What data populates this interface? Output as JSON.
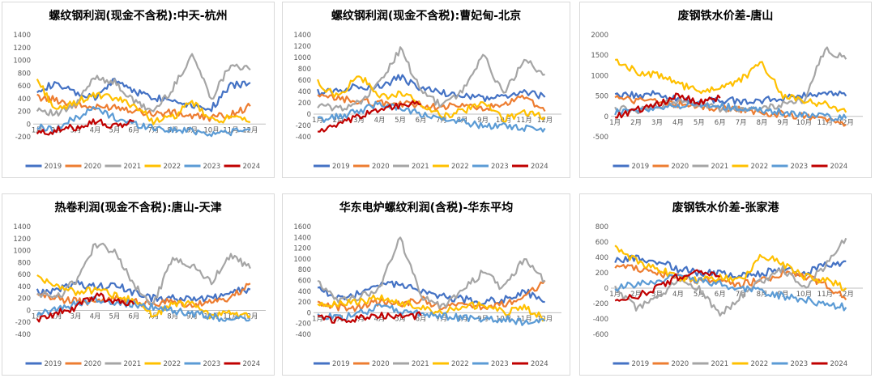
{
  "colors": {
    "2019": "#4472c4",
    "2020": "#ed7d31",
    "2021": "#a5a5a5",
    "2022": "#ffc000",
    "2023": "#5b9bd5",
    "2024": "#c00000"
  },
  "chart_data": [
    {
      "type": "line",
      "title": "螺纹钢利润(现金不含税):中天-杭州",
      "ylim": [
        -200,
        1400
      ],
      "yticks": [
        "1400",
        "1200",
        "1000",
        "800",
        "600",
        "400",
        "200",
        "0",
        "-200"
      ],
      "x": [
        "1月",
        "2月",
        "3月",
        "4月",
        "5月",
        "6月",
        "7月",
        "8月",
        "9月",
        "10月",
        "11月",
        "12月"
      ],
      "legend_position": "bottom",
      "series": [
        {
          "name": "2019",
          "values": [
            550,
            620,
            480,
            400,
            700,
            520,
            420,
            380,
            300,
            250,
            600,
            650
          ]
        },
        {
          "name": "2020",
          "values": [
            420,
            380,
            300,
            250,
            280,
            220,
            160,
            180,
            120,
            100,
            150,
            280
          ]
        },
        {
          "name": "2021",
          "values": [
            250,
            150,
            300,
            750,
            650,
            350,
            200,
            550,
            1100,
            400,
            950,
            850
          ]
        },
        {
          "name": "2022",
          "values": [
            700,
            200,
            350,
            450,
            400,
            300,
            50,
            100,
            350,
            50,
            100,
            30
          ]
        },
        {
          "name": "2023",
          "values": [
            -50,
            -80,
            100,
            250,
            100,
            0,
            -50,
            -100,
            -100,
            -150,
            -120,
            -100
          ]
        },
        {
          "name": "2024",
          "values": [
            -150,
            -100,
            -50,
            50,
            -50,
            50,
            null,
            null,
            null,
            null,
            null,
            null
          ]
        }
      ]
    },
    {
      "type": "line",
      "title": "螺纹钢利润(现金不含税):曹妃甸-北京",
      "ylim": [
        -400,
        1400
      ],
      "yticks": [
        "1400",
        "1200",
        "1000",
        "800",
        "600",
        "400",
        "200",
        "0",
        "-200",
        "-400"
      ],
      "x": [
        "1月",
        "2月",
        "3月",
        "4月",
        "5月",
        "6月",
        "7月",
        "8月",
        "9月",
        "10月",
        "11月",
        "12月"
      ],
      "legend_position": "bottom",
      "series": [
        {
          "name": "2019",
          "values": [
            380,
            420,
            500,
            480,
            650,
            450,
            380,
            320,
            280,
            300,
            400,
            300
          ]
        },
        {
          "name": "2020",
          "values": [
            300,
            280,
            220,
            200,
            180,
            160,
            120,
            150,
            100,
            150,
            300,
            50
          ]
        },
        {
          "name": "2021",
          "values": [
            150,
            100,
            200,
            550,
            1150,
            400,
            150,
            400,
            1050,
            350,
            950,
            700
          ]
        },
        {
          "name": "2022",
          "values": [
            550,
            300,
            700,
            300,
            350,
            200,
            -50,
            50,
            200,
            -100,
            50,
            -50
          ]
        },
        {
          "name": "2023",
          "values": [
            -100,
            -50,
            50,
            200,
            100,
            0,
            -100,
            -150,
            -200,
            -200,
            -250,
            -250
          ]
        },
        {
          "name": "2024",
          "values": [
            -300,
            -200,
            -50,
            100,
            150,
            180,
            null,
            null,
            null,
            null,
            null,
            null
          ]
        }
      ]
    },
    {
      "type": "line",
      "title": "废钢铁水价差-唐山",
      "ylim": [
        -500,
        2000
      ],
      "yticks": [
        "2000",
        "1500",
        "1000",
        "500",
        "0",
        "-500"
      ],
      "x": [
        "1月",
        "2月",
        "3月",
        "4月",
        "5月",
        "6月",
        "7月",
        "8月",
        "9月",
        "10月",
        "11月",
        "12月"
      ],
      "legend_position": "bottom",
      "series": [
        {
          "name": "2019",
          "values": [
            500,
            520,
            550,
            400,
            350,
            400,
            380,
            400,
            450,
            500,
            600,
            500
          ]
        },
        {
          "name": "2020",
          "values": [
            450,
            400,
            350,
            300,
            250,
            200,
            150,
            100,
            50,
            0,
            -100,
            -200
          ]
        },
        {
          "name": "2021",
          "values": [
            200,
            150,
            250,
            400,
            300,
            200,
            150,
            200,
            300,
            400,
            1650,
            1400
          ]
        },
        {
          "name": "2022",
          "values": [
            1400,
            1100,
            1000,
            800,
            600,
            700,
            900,
            1300,
            500,
            400,
            300,
            100
          ]
        },
        {
          "name": "2023",
          "values": [
            100,
            150,
            200,
            250,
            300,
            250,
            200,
            150,
            100,
            50,
            0,
            -50
          ]
        },
        {
          "name": "2024",
          "values": [
            0,
            150,
            300,
            500,
            350,
            450,
            null,
            null,
            null,
            null,
            null,
            null
          ]
        }
      ]
    },
    {
      "type": "line",
      "title": "热卷利润(现金不含税):唐山-天津",
      "ylim": [
        -400,
        1400
      ],
      "yticks": [
        "1400",
        "1200",
        "1000",
        "800",
        "600",
        "400",
        "200",
        "0",
        "-200",
        "-400"
      ],
      "x": [
        "1月",
        "2月",
        "3月",
        "4月",
        "5月",
        "6月",
        "7月",
        "8月",
        "9月",
        "10月",
        "11月",
        "12月"
      ],
      "legend_position": "bottom",
      "series": [
        {
          "name": "2019",
          "values": [
            300,
            350,
            450,
            400,
            420,
            300,
            200,
            200,
            180,
            200,
            300,
            350
          ]
        },
        {
          "name": "2020",
          "values": [
            250,
            200,
            150,
            150,
            200,
            150,
            100,
            150,
            100,
            150,
            200,
            450
          ]
        },
        {
          "name": "2021",
          "values": [
            300,
            200,
            500,
            1100,
            1000,
            400,
            100,
            900,
            750,
            450,
            950,
            700
          ]
        },
        {
          "name": "2022",
          "values": [
            600,
            400,
            300,
            350,
            250,
            150,
            -100,
            100,
            100,
            -100,
            -50,
            -100
          ]
        },
        {
          "name": "2023",
          "values": [
            -50,
            0,
            100,
            200,
            150,
            100,
            50,
            0,
            -50,
            -100,
            -150,
            -150
          ]
        },
        {
          "name": "2024",
          "values": [
            -150,
            -50,
            50,
            250,
            150,
            100,
            null,
            null,
            null,
            null,
            null,
            null
          ]
        }
      ]
    },
    {
      "type": "line",
      "title": "华东电炉螺纹利润(含税)-华东平均",
      "ylim": [
        -400,
        1600
      ],
      "yticks": [
        "1600",
        "1400",
        "1200",
        "1000",
        "800",
        "600",
        "400",
        "200",
        "0",
        "-200",
        "-400"
      ],
      "x": [
        "1月",
        "2月",
        "3月",
        "4月",
        "5月",
        "6月",
        "7月",
        "8月",
        "9月",
        "10月",
        "11月",
        "12月"
      ],
      "legend_position": "bottom",
      "series": [
        {
          "name": "2019",
          "values": [
            450,
            300,
            350,
            550,
            500,
            400,
            300,
            250,
            200,
            250,
            400,
            200
          ]
        },
        {
          "name": "2020",
          "values": [
            150,
            100,
            100,
            200,
            150,
            250,
            100,
            150,
            100,
            150,
            300,
            600
          ]
        },
        {
          "name": "2021",
          "values": [
            600,
            200,
            300,
            450,
            1400,
            300,
            100,
            400,
            750,
            450,
            1000,
            600
          ]
        },
        {
          "name": "2022",
          "values": [
            200,
            150,
            200,
            300,
            200,
            100,
            0,
            100,
            150,
            0,
            100,
            -100
          ]
        },
        {
          "name": "2023",
          "values": [
            -50,
            -100,
            0,
            100,
            50,
            0,
            -50,
            -100,
            -150,
            -100,
            -200,
            -150
          ]
        },
        {
          "name": "2024",
          "values": [
            -100,
            -150,
            -100,
            -50,
            -50,
            -50,
            null,
            null,
            null,
            null,
            null,
            null
          ]
        }
      ]
    },
    {
      "type": "line",
      "title": "废钢铁水价差-张家港",
      "ylim": [
        -600,
        800
      ],
      "yticks": [
        "800",
        "600",
        "400",
        "200",
        "0",
        "-200",
        "-400",
        "-600"
      ],
      "x": [
        "1月",
        "2月",
        "3月",
        "4月",
        "5月",
        "6月",
        "7月",
        "8月",
        "9月",
        "10月",
        "11月",
        "12月"
      ],
      "legend_position": "bottom",
      "series": [
        {
          "name": "2019",
          "values": [
            350,
            400,
            350,
            250,
            200,
            200,
            150,
            200,
            250,
            200,
            300,
            350
          ]
        },
        {
          "name": "2020",
          "values": [
            300,
            250,
            200,
            150,
            100,
            100,
            50,
            100,
            200,
            150,
            50,
            -150
          ]
        },
        {
          "name": "2021",
          "values": [
            0,
            -250,
            -150,
            100,
            0,
            -350,
            -100,
            100,
            250,
            0,
            300,
            650
          ]
        },
        {
          "name": "2022",
          "values": [
            550,
            350,
            250,
            150,
            100,
            150,
            100,
            450,
            300,
            150,
            100,
            0
          ]
        },
        {
          "name": "2023",
          "values": [
            0,
            50,
            100,
            150,
            100,
            50,
            0,
            -50,
            -100,
            -150,
            -200,
            -250
          ]
        },
        {
          "name": "2024",
          "values": [
            -200,
            -100,
            0,
            150,
            200,
            150,
            null,
            null,
            null,
            null,
            null,
            null
          ]
        }
      ]
    }
  ]
}
